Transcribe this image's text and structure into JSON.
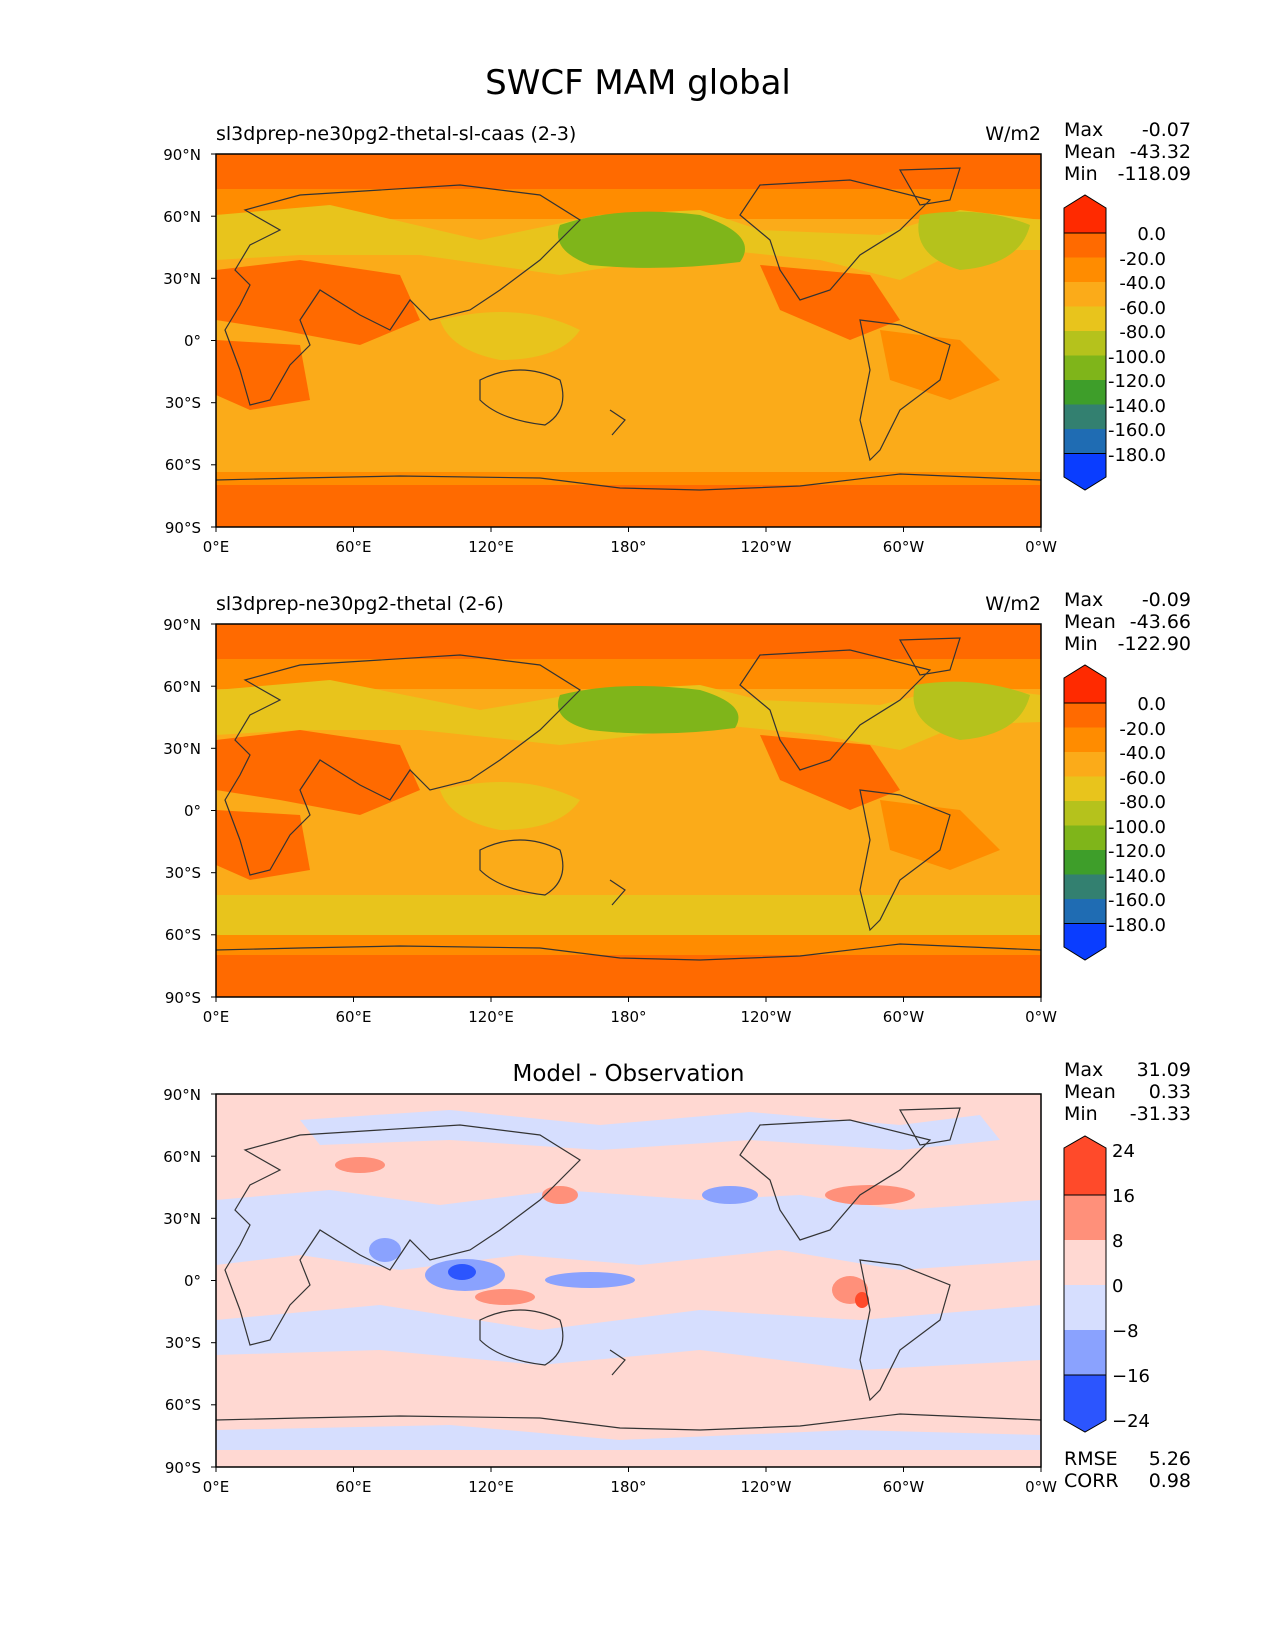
{
  "figure": {
    "title": "SWCF MAM global"
  },
  "lon_ticks": [
    "0°E",
    "60°E",
    "120°E",
    "180°",
    "120°W",
    "60°W",
    "0°W"
  ],
  "lat_ticks": [
    "90°N",
    "60°N",
    "30°N",
    "0°",
    "30°S",
    "60°S",
    "90°S"
  ],
  "stat_labels": {
    "max": "Max",
    "mean": "Mean",
    "min": "Min",
    "rmse": "RMSE",
    "corr": "CORR"
  },
  "colorbars": {
    "field": {
      "ticks": [
        "0.0",
        "-20.0",
        "-40.0",
        "-60.0",
        "-80.0",
        "-100.0",
        "-120.0",
        "-140.0",
        "-160.0",
        "-180.0"
      ],
      "colors": [
        "#ff2a00",
        "#ff6a00",
        "#ff8c00",
        "#fbab19",
        "#e8c41c",
        "#b5c21c",
        "#7fb51a",
        "#3e9e2a",
        "#338070",
        "#1f6cb3",
        "#0a3dff",
        "#0a3dff"
      ]
    },
    "diff": {
      "ticks": [
        "24",
        "16",
        "8",
        "0",
        "−8",
        "−16",
        "−24"
      ],
      "colors": [
        "#ff4a2a",
        "#ff907a",
        "#ffd8d2",
        "#d6defe",
        "#8aa2fe",
        "#2c55fe",
        "#0a2ee8"
      ]
    }
  },
  "chart_data": [
    {
      "type": "heatmap",
      "title": "sl3dprep-ne30pg2-thetal-sl-caas (2-3)",
      "units": "W/m2",
      "xlim": [
        0,
        360
      ],
      "ylim": [
        -90,
        90
      ],
      "stats": {
        "max": "-0.07",
        "mean": "-43.32",
        "min": "-118.09"
      },
      "zonal_profile_lat": [
        90,
        75,
        60,
        45,
        30,
        15,
        0,
        -15,
        -30,
        -45,
        -60,
        -75,
        -90
      ],
      "zonal_profile_value": [
        -10,
        -15,
        -40,
        -80,
        -35,
        -40,
        -55,
        -45,
        -50,
        -55,
        -50,
        -12,
        -5
      ]
    },
    {
      "type": "heatmap",
      "title": "sl3dprep-ne30pg2-thetal (2-6)",
      "units": "W/m2",
      "xlim": [
        0,
        360
      ],
      "ylim": [
        -90,
        90
      ],
      "stats": {
        "max": "-0.09",
        "mean": "-43.66",
        "min": "-122.90"
      },
      "zonal_profile_lat": [
        90,
        75,
        60,
        45,
        30,
        15,
        0,
        -15,
        -30,
        -45,
        -60,
        -75,
        -90
      ],
      "zonal_profile_value": [
        -10,
        -15,
        -45,
        -75,
        -35,
        -40,
        -50,
        -45,
        -50,
        -60,
        -55,
        -12,
        -5
      ]
    },
    {
      "type": "heatmap",
      "title": "Model - Observation",
      "units": "",
      "xlim": [
        0,
        360
      ],
      "ylim": [
        -90,
        90
      ],
      "stats": {
        "max": "31.09",
        "mean": "0.33",
        "min": "-31.33",
        "rmse": "5.26",
        "corr": "0.98"
      }
    }
  ]
}
